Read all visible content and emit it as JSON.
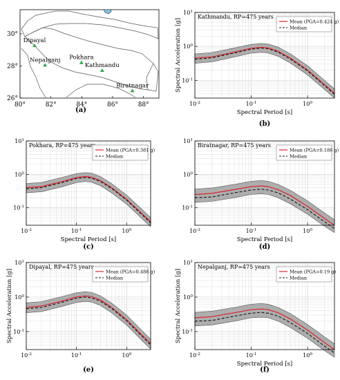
{
  "map": {
    "lon_ticks": [
      "80°",
      "82°",
      "84°",
      "86°",
      "88°"
    ],
    "lat_ticks": [
      "26°",
      "28°",
      "30°"
    ],
    "cities": [
      {
        "name": "Dipayal",
        "lon": 80.94,
        "lat": 29.26
      },
      {
        "name": "Nepalganj",
        "lon": 81.62,
        "lat": 28.05
      },
      {
        "name": "Pokhara",
        "lon": 83.98,
        "lat": 28.21
      },
      {
        "name": "Kathmandu",
        "lon": 85.32,
        "lat": 27.72
      },
      {
        "name": "Biratnagar",
        "lon": 87.28,
        "lat": 26.45
      }
    ],
    "tag": "(a)"
  },
  "chart_data": [
    {
      "type": "line",
      "tag": "(b)",
      "title": "Kathmandu, RP=475 years",
      "xlabel": "Spectral Period [s]",
      "ylabel": "Spectral Acceleration [g]",
      "xscale": "log",
      "yscale": "log",
      "xlim": [
        0.01,
        3
      ],
      "ylim": [
        0.03,
        10
      ],
      "x_ticks": [
        "10-2",
        "10-1",
        "100"
      ],
      "y_ticks": [
        "10-1",
        "100",
        "101"
      ],
      "legend": [
        "Mean (PGA=0.424 g)",
        "Median"
      ],
      "legend_position": "top-right",
      "grid": true,
      "x": [
        0.01,
        0.02,
        0.05,
        0.1,
        0.15,
        0.2,
        0.3,
        0.5,
        1,
        2,
        3
      ],
      "series": [
        {
          "name": "Mean (PGA=0.424 g)",
          "values": [
            0.45,
            0.49,
            0.68,
            0.88,
            0.94,
            0.9,
            0.72,
            0.45,
            0.2,
            0.075,
            0.042
          ]
        },
        {
          "name": "Median",
          "values": [
            0.42,
            0.46,
            0.64,
            0.83,
            0.89,
            0.85,
            0.68,
            0.42,
            0.19,
            0.07,
            0.039
          ]
        }
      ],
      "band": {
        "upper": [
          0.6,
          0.66,
          0.9,
          1.15,
          1.22,
          1.17,
          0.95,
          0.6,
          0.27,
          0.1,
          0.056
        ],
        "lower": [
          0.32,
          0.35,
          0.49,
          0.63,
          0.67,
          0.64,
          0.51,
          0.32,
          0.144,
          0.054,
          0.03
        ]
      }
    },
    {
      "type": "line",
      "tag": "(c)",
      "title": "Pokhara, RP=475 years",
      "xlabel": "Spectral Period [s]",
      "ylabel": "",
      "xscale": "log",
      "yscale": "log",
      "xlim": [
        0.01,
        3
      ],
      "ylim": [
        0.03,
        10
      ],
      "x_ticks": [
        "10-2",
        "10-1",
        "100"
      ],
      "y_ticks": [
        "10-1",
        "100",
        "101"
      ],
      "legend": [
        "Mean (PGA=0.381 g)",
        "Median"
      ],
      "legend_position": "top-right",
      "grid": true,
      "x": [
        0.01,
        0.02,
        0.05,
        0.1,
        0.15,
        0.2,
        0.3,
        0.5,
        1,
        2,
        3
      ],
      "series": [
        {
          "name": "Mean (PGA=0.381 g)",
          "values": [
            0.4,
            0.43,
            0.6,
            0.8,
            0.86,
            0.82,
            0.65,
            0.4,
            0.18,
            0.067,
            0.038
          ]
        },
        {
          "name": "Median",
          "values": [
            0.37,
            0.4,
            0.56,
            0.75,
            0.8,
            0.77,
            0.61,
            0.38,
            0.17,
            0.063,
            0.035
          ]
        }
      ],
      "band": {
        "upper": [
          0.53,
          0.57,
          0.8,
          1.05,
          1.13,
          1.08,
          0.86,
          0.53,
          0.24,
          0.09,
          0.05
        ],
        "lower": [
          0.28,
          0.3,
          0.42,
          0.57,
          0.61,
          0.58,
          0.46,
          0.28,
          0.128,
          0.048,
          0.027
        ]
      }
    },
    {
      "type": "line",
      "tag": "(d)",
      "title": "Biratnagar, RP=475 years",
      "xlabel": "Spectral Period [s]",
      "ylabel": "",
      "xscale": "log",
      "yscale": "log",
      "xlim": [
        0.01,
        3
      ],
      "ylim": [
        0.03,
        10
      ],
      "x_ticks": [
        "10-2",
        "10-1",
        "100"
      ],
      "y_ticks": [
        "10-1",
        "100",
        "101"
      ],
      "legend": [
        "Mean (PGA=0.186 g)",
        "Median"
      ],
      "legend_position": "top-right",
      "grid": true,
      "x": [
        0.01,
        0.02,
        0.05,
        0.1,
        0.15,
        0.2,
        0.3,
        0.5,
        1,
        2,
        3
      ],
      "series": [
        {
          "name": "Mean (PGA=0.186 g)",
          "values": [
            0.25,
            0.27,
            0.35,
            0.43,
            0.45,
            0.43,
            0.35,
            0.23,
            0.11,
            0.048,
            0.03
          ]
        },
        {
          "name": "Median",
          "values": [
            0.2,
            0.21,
            0.28,
            0.34,
            0.36,
            0.34,
            0.28,
            0.18,
            0.088,
            0.038,
            0.024
          ]
        }
      ],
      "band": {
        "upper": [
          0.36,
          0.39,
          0.5,
          0.62,
          0.65,
          0.62,
          0.5,
          0.33,
          0.16,
          0.07,
          0.044
        ],
        "lower": [
          0.145,
          0.155,
          0.2,
          0.25,
          0.26,
          0.25,
          0.2,
          0.13,
          0.064,
          0.028,
          0.018
        ]
      }
    },
    {
      "type": "line",
      "tag": "(e)",
      "title": "Dipayal, RP=475 years",
      "xlabel": "",
      "ylabel": "Spectral Acceleration [g]",
      "xscale": "log",
      "yscale": "log",
      "xlim": [
        0.01,
        3
      ],
      "ylim": [
        0.03,
        10
      ],
      "x_ticks": [
        "10-2",
        "10-1",
        "100"
      ],
      "y_ticks": [
        "10-1",
        "100",
        "101"
      ],
      "legend": [
        "Mean (PGA=0.488 g)",
        "Median"
      ],
      "legend_position": "top-right",
      "grid": true,
      "x": [
        0.01,
        0.02,
        0.05,
        0.1,
        0.15,
        0.2,
        0.3,
        0.5,
        1,
        2,
        3
      ],
      "series": [
        {
          "name": "Mean (PGA=0.488 g)",
          "values": [
            0.5,
            0.55,
            0.76,
            1.0,
            1.08,
            1.03,
            0.82,
            0.5,
            0.22,
            0.08,
            0.045
          ]
        },
        {
          "name": "Median",
          "values": [
            0.46,
            0.5,
            0.7,
            0.93,
            1.0,
            0.95,
            0.76,
            0.47,
            0.205,
            0.074,
            0.041
          ]
        }
      ],
      "band": {
        "upper": [
          0.68,
          0.74,
          1.02,
          1.33,
          1.43,
          1.36,
          1.09,
          0.67,
          0.3,
          0.108,
          0.06
        ],
        "lower": [
          0.35,
          0.38,
          0.53,
          0.7,
          0.75,
          0.72,
          0.57,
          0.35,
          0.154,
          0.056,
          0.031
        ]
      }
    },
    {
      "type": "line",
      "tag": "(f)",
      "title": "Nepalganj, RP=475 years",
      "xlabel": "Spectral Period [s]",
      "ylabel": "Spectral Acceleration [g]",
      "xscale": "log",
      "yscale": "log",
      "xlim": [
        0.01,
        3
      ],
      "ylim": [
        0.03,
        10
      ],
      "x_ticks": [
        "10-2",
        "10-1",
        "100"
      ],
      "y_ticks": [
        "10-1",
        "100",
        "101"
      ],
      "legend": [
        "Mean (PGA=0.19 g)",
        "Median"
      ],
      "legend_position": "top-right",
      "grid": true,
      "x": [
        0.01,
        0.02,
        0.05,
        0.1,
        0.15,
        0.2,
        0.3,
        0.5,
        1,
        2,
        3
      ],
      "series": [
        {
          "name": "Mean (PGA=0.19 g)",
          "values": [
            0.25,
            0.27,
            0.35,
            0.43,
            0.45,
            0.43,
            0.35,
            0.23,
            0.11,
            0.048,
            0.03
          ]
        },
        {
          "name": "Median",
          "values": [
            0.2,
            0.21,
            0.28,
            0.34,
            0.36,
            0.34,
            0.28,
            0.18,
            0.088,
            0.038,
            0.024
          ]
        }
      ],
      "band": {
        "upper": [
          0.36,
          0.39,
          0.5,
          0.62,
          0.65,
          0.62,
          0.5,
          0.33,
          0.16,
          0.07,
          0.044
        ],
        "lower": [
          0.145,
          0.155,
          0.2,
          0.25,
          0.26,
          0.25,
          0.2,
          0.13,
          0.064,
          0.028,
          0.018
        ]
      }
    }
  ],
  "colors": {
    "mean": "#d8242a",
    "median": "#111111",
    "band": "#a0a0a0",
    "marker": "#2da84a",
    "grid": "#d4d4d4"
  }
}
